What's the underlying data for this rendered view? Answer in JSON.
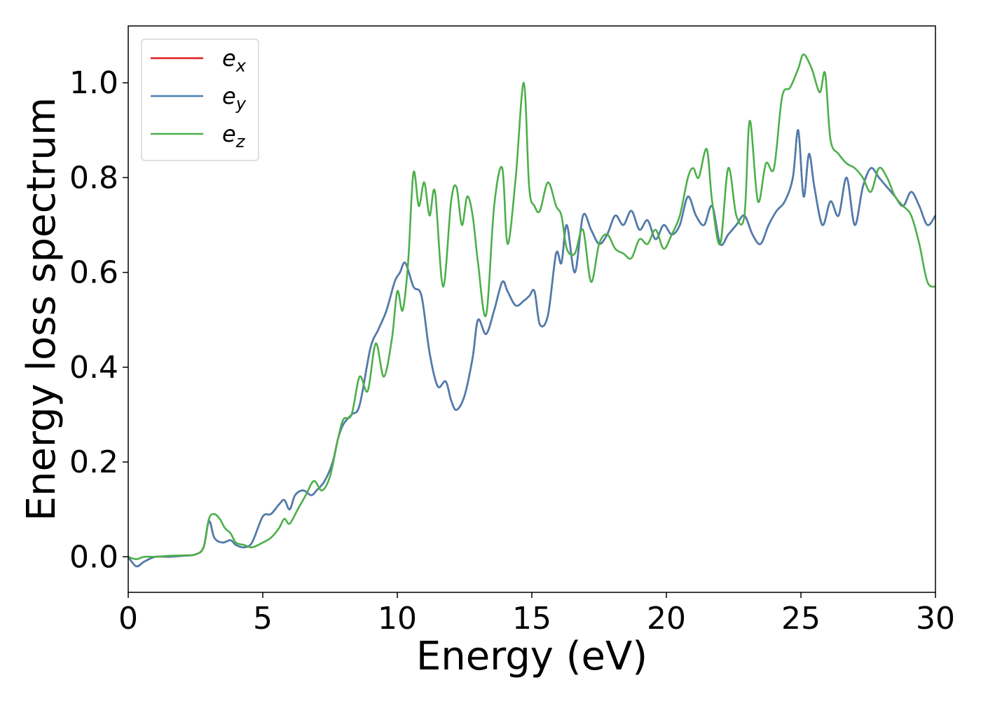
{
  "chart_data": {
    "type": "line",
    "title": "",
    "xlabel": "Energy (eV)",
    "ylabel": "Energy loss spectrum",
    "xlim": [
      0,
      30
    ],
    "ylim": [
      -0.075,
      1.12
    ],
    "xticks": [
      0,
      5,
      10,
      15,
      20,
      25,
      30
    ],
    "xtick_labels": [
      "0",
      "5",
      "10",
      "15",
      "20",
      "25",
      "30"
    ],
    "yticks": [
      0.0,
      0.2,
      0.4,
      0.6,
      0.8,
      1.0
    ],
    "ytick_labels": [
      "0.0",
      "0.2",
      "0.4",
      "0.6",
      "0.8",
      "1.0"
    ],
    "grid": false,
    "legend_position": "top-left",
    "series": [
      {
        "name": "e_x",
        "label_base": "e",
        "label_sub": "x",
        "color": "#e41a1c",
        "x": [
          0,
          0.3,
          0.6,
          1,
          1.5,
          2,
          2.5,
          2.8,
          3,
          3.2,
          3.5,
          3.8,
          4,
          4.3,
          4.6,
          5,
          5.3,
          5.6,
          5.8,
          6,
          6.2,
          6.5,
          6.8,
          7,
          7.3,
          7.6,
          7.8,
          8,
          8.3,
          8.6,
          9,
          9.3,
          9.6,
          9.9,
          10.1,
          10.3,
          10.6,
          10.9,
          11.2,
          11.5,
          11.8,
          12,
          12.2,
          12.5,
          12.8,
          13,
          13.3,
          13.6,
          13.9,
          14.1,
          14.4,
          14.7,
          14.9,
          15.1,
          15.3,
          15.6,
          15.9,
          16.1,
          16.3,
          16.6,
          16.9,
          17.2,
          17.5,
          17.8,
          18.1,
          18.4,
          18.7,
          19,
          19.3,
          19.6,
          19.9,
          20.2,
          20.5,
          20.8,
          21.1,
          21.4,
          21.7,
          22,
          22.3,
          22.6,
          22.9,
          23.2,
          23.5,
          23.8,
          24.1,
          24.4,
          24.7,
          24.9,
          25.1,
          25.3,
          25.5,
          25.8,
          26.1,
          26.4,
          26.7,
          27,
          27.3,
          27.6,
          27.9,
          28.2,
          28.5,
          28.8,
          29.1,
          29.4,
          29.7,
          30
        ],
        "y": [
          0,
          -0.02,
          -0.01,
          0,
          0,
          0.002,
          0.005,
          0.02,
          0.075,
          0.04,
          0.03,
          0.035,
          0.025,
          0.02,
          0.03,
          0.085,
          0.09,
          0.11,
          0.12,
          0.1,
          0.13,
          0.14,
          0.13,
          0.14,
          0.16,
          0.2,
          0.25,
          0.28,
          0.3,
          0.32,
          0.44,
          0.48,
          0.52,
          0.58,
          0.6,
          0.62,
          0.57,
          0.55,
          0.43,
          0.36,
          0.37,
          0.33,
          0.31,
          0.34,
          0.42,
          0.5,
          0.47,
          0.52,
          0.58,
          0.56,
          0.53,
          0.54,
          0.55,
          0.56,
          0.49,
          0.51,
          0.64,
          0.62,
          0.7,
          0.6,
          0.72,
          0.69,
          0.66,
          0.68,
          0.72,
          0.7,
          0.73,
          0.69,
          0.71,
          0.67,
          0.7,
          0.68,
          0.7,
          0.76,
          0.72,
          0.7,
          0.74,
          0.66,
          0.68,
          0.7,
          0.72,
          0.68,
          0.66,
          0.7,
          0.73,
          0.75,
          0.8,
          0.9,
          0.76,
          0.85,
          0.78,
          0.7,
          0.75,
          0.72,
          0.8,
          0.7,
          0.78,
          0.82,
          0.8,
          0.78,
          0.76,
          0.74,
          0.77,
          0.74,
          0.7,
          0.72
        ]
      },
      {
        "name": "e_y",
        "label_base": "e",
        "label_sub": "y",
        "color": "#4a7eb0",
        "x": [
          0,
          0.3,
          0.6,
          1,
          1.5,
          2,
          2.5,
          2.8,
          3,
          3.2,
          3.5,
          3.8,
          4,
          4.3,
          4.6,
          5,
          5.3,
          5.6,
          5.8,
          6,
          6.2,
          6.5,
          6.8,
          7,
          7.3,
          7.6,
          7.8,
          8,
          8.3,
          8.6,
          9,
          9.3,
          9.6,
          9.9,
          10.1,
          10.3,
          10.6,
          10.9,
          11.2,
          11.5,
          11.8,
          12,
          12.2,
          12.5,
          12.8,
          13,
          13.3,
          13.6,
          13.9,
          14.1,
          14.4,
          14.7,
          14.9,
          15.1,
          15.3,
          15.6,
          15.9,
          16.1,
          16.3,
          16.6,
          16.9,
          17.2,
          17.5,
          17.8,
          18.1,
          18.4,
          18.7,
          19,
          19.3,
          19.6,
          19.9,
          20.2,
          20.5,
          20.8,
          21.1,
          21.4,
          21.7,
          22,
          22.3,
          22.6,
          22.9,
          23.2,
          23.5,
          23.8,
          24.1,
          24.4,
          24.7,
          24.9,
          25.1,
          25.3,
          25.5,
          25.8,
          26.1,
          26.4,
          26.7,
          27,
          27.3,
          27.6,
          27.9,
          28.2,
          28.5,
          28.8,
          29.1,
          29.4,
          29.7,
          30
        ],
        "y": [
          0,
          -0.02,
          -0.01,
          0,
          0,
          0.002,
          0.005,
          0.02,
          0.075,
          0.04,
          0.03,
          0.035,
          0.025,
          0.02,
          0.03,
          0.085,
          0.09,
          0.11,
          0.12,
          0.1,
          0.13,
          0.14,
          0.13,
          0.14,
          0.16,
          0.2,
          0.25,
          0.28,
          0.3,
          0.32,
          0.44,
          0.48,
          0.52,
          0.58,
          0.6,
          0.62,
          0.57,
          0.55,
          0.43,
          0.36,
          0.37,
          0.33,
          0.31,
          0.34,
          0.42,
          0.5,
          0.47,
          0.52,
          0.58,
          0.56,
          0.53,
          0.54,
          0.55,
          0.56,
          0.49,
          0.51,
          0.64,
          0.62,
          0.7,
          0.6,
          0.72,
          0.69,
          0.66,
          0.68,
          0.72,
          0.7,
          0.73,
          0.69,
          0.71,
          0.67,
          0.7,
          0.68,
          0.7,
          0.76,
          0.72,
          0.7,
          0.74,
          0.66,
          0.68,
          0.7,
          0.72,
          0.68,
          0.66,
          0.7,
          0.73,
          0.75,
          0.8,
          0.9,
          0.76,
          0.85,
          0.78,
          0.7,
          0.75,
          0.72,
          0.8,
          0.7,
          0.78,
          0.82,
          0.8,
          0.78,
          0.76,
          0.74,
          0.77,
          0.74,
          0.7,
          0.72
        ]
      },
      {
        "name": "e_z",
        "label_base": "e",
        "label_sub": "z",
        "color": "#4daf4a",
        "x": [
          0,
          0.3,
          0.6,
          1,
          1.5,
          2,
          2.5,
          2.8,
          3,
          3.2,
          3.4,
          3.6,
          3.8,
          4,
          4.3,
          4.6,
          5,
          5.3,
          5.6,
          5.8,
          6,
          6.3,
          6.6,
          6.9,
          7.2,
          7.5,
          7.8,
          8,
          8.3,
          8.6,
          8.9,
          9.2,
          9.5,
          9.8,
          10,
          10.2,
          10.4,
          10.6,
          10.8,
          11,
          11.2,
          11.4,
          11.7,
          12,
          12.2,
          12.4,
          12.6,
          12.8,
          13,
          13.3,
          13.6,
          13.9,
          14.1,
          14.4,
          14.7,
          14.9,
          15.1,
          15.3,
          15.6,
          15.9,
          16.1,
          16.3,
          16.6,
          16.9,
          17.2,
          17.5,
          17.8,
          18.1,
          18.4,
          18.7,
          19,
          19.3,
          19.6,
          19.9,
          20.2,
          20.5,
          20.8,
          21,
          21.2,
          21.5,
          21.7,
          22,
          22.3,
          22.6,
          22.9,
          23.1,
          23.4,
          23.7,
          24,
          24.3,
          24.6,
          24.9,
          25.1,
          25.4,
          25.7,
          25.9,
          26.1,
          26.4,
          26.7,
          27,
          27.3,
          27.6,
          27.9,
          28.2,
          28.5,
          28.8,
          29.1,
          29.4,
          29.7,
          30
        ],
        "y": [
          0,
          -0.005,
          0,
          0,
          0.002,
          0.003,
          0.005,
          0.02,
          0.08,
          0.09,
          0.08,
          0.06,
          0.05,
          0.03,
          0.025,
          0.02,
          0.03,
          0.04,
          0.06,
          0.08,
          0.07,
          0.1,
          0.13,
          0.16,
          0.14,
          0.17,
          0.25,
          0.29,
          0.3,
          0.38,
          0.35,
          0.45,
          0.38,
          0.46,
          0.56,
          0.52,
          0.62,
          0.81,
          0.74,
          0.79,
          0.72,
          0.77,
          0.57,
          0.75,
          0.78,
          0.7,
          0.76,
          0.72,
          0.62,
          0.51,
          0.74,
          0.82,
          0.66,
          0.8,
          1.0,
          0.78,
          0.74,
          0.73,
          0.79,
          0.74,
          0.72,
          0.65,
          0.64,
          0.69,
          0.58,
          0.66,
          0.68,
          0.65,
          0.64,
          0.63,
          0.67,
          0.66,
          0.69,
          0.65,
          0.68,
          0.72,
          0.8,
          0.82,
          0.8,
          0.86,
          0.75,
          0.66,
          0.82,
          0.72,
          0.72,
          0.92,
          0.75,
          0.83,
          0.82,
          0.97,
          0.99,
          1.03,
          1.06,
          1.03,
          0.98,
          1.02,
          0.88,
          0.85,
          0.83,
          0.82,
          0.8,
          0.77,
          0.82,
          0.8,
          0.76,
          0.74,
          0.72,
          0.66,
          0.58,
          0.57
        ]
      }
    ]
  }
}
